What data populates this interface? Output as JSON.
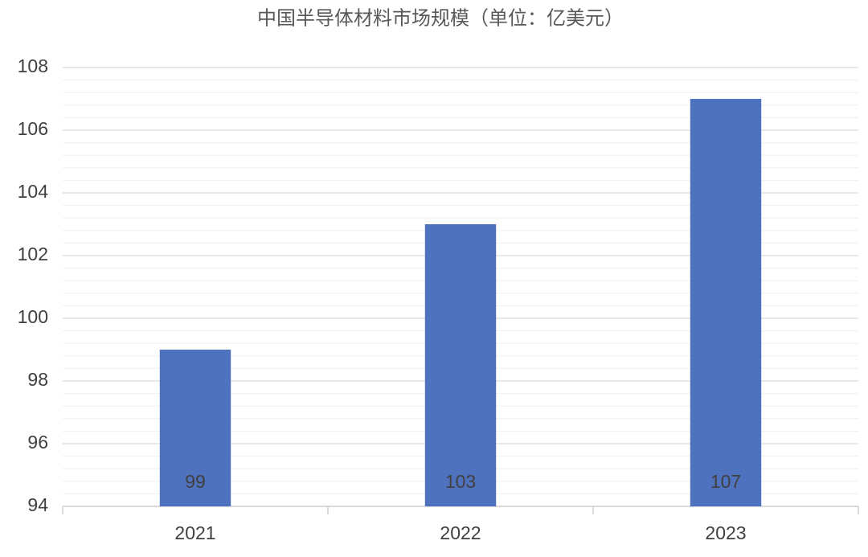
{
  "chart_data": {
    "type": "bar",
    "title": "中国半导体材料市场规模（单位：亿美元）",
    "categories": [
      "2021",
      "2022",
      "2023"
    ],
    "values": [
      99,
      103,
      107
    ],
    "color": "#4e72be",
    "ylim": [
      94,
      108
    ],
    "yticks": [
      94,
      96,
      98,
      100,
      102,
      104,
      106,
      108
    ],
    "grid": true,
    "minor_grid_divisions": 5
  }
}
